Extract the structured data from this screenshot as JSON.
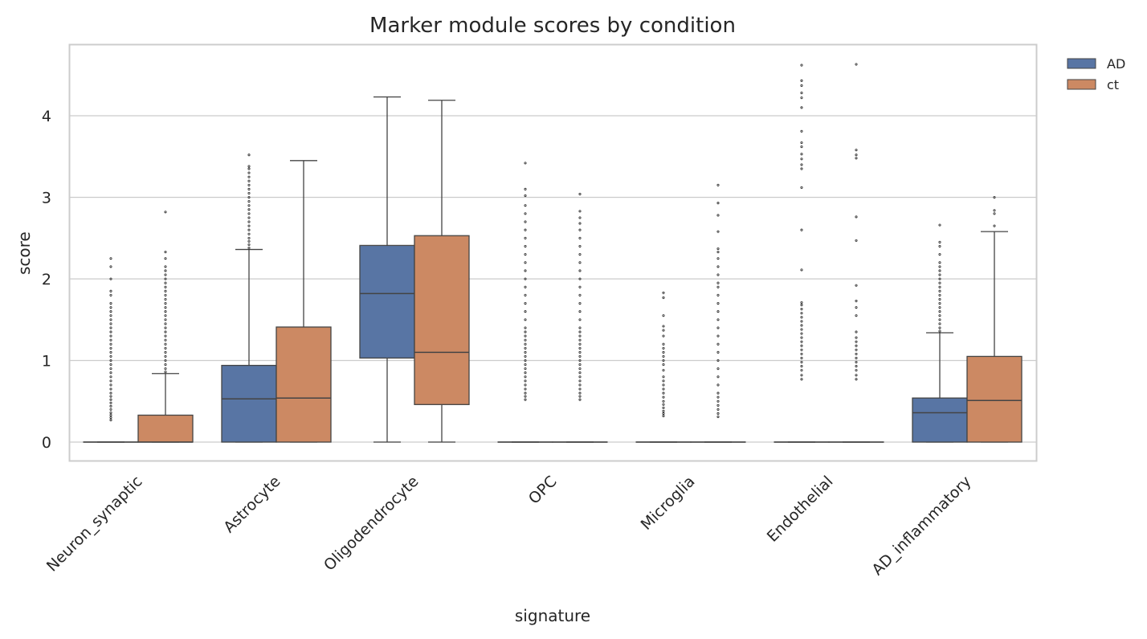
{
  "chart_data": {
    "type": "box",
    "title": "Marker module scores by condition",
    "xlabel": "signature",
    "ylabel": "score",
    "ylim": [
      -0.23,
      4.88
    ],
    "yticks": [
      0,
      1,
      2,
      3,
      4
    ],
    "grid": "y",
    "legend_position": "outside top-right",
    "categories": [
      "Neuron_synaptic",
      "Astrocyte",
      "Oligodendrocyte",
      "OPC",
      "Microglia",
      "Endothelial",
      "AD_inflammatory"
    ],
    "series": [
      {
        "name": "AD",
        "color": "#5875a4",
        "boxes": [
          {
            "q1": 0,
            "median": 0,
            "q3": 0,
            "whislo": 0,
            "whishi": 0,
            "fliers": [
              0.27,
              0.3,
              0.33,
              0.36,
              0.4,
              0.44,
              0.48,
              0.52,
              0.56,
              0.6,
              0.65,
              0.7,
              0.75,
              0.8,
              0.85,
              0.9,
              0.95,
              1.0,
              1.05,
              1.1,
              1.15,
              1.2,
              1.25,
              1.3,
              1.35,
              1.4,
              1.45,
              1.5,
              1.55,
              1.6,
              1.65,
              1.7,
              1.8,
              1.85,
              2.0,
              2.15,
              2.25
            ]
          },
          {
            "q1": 0,
            "median": 0.53,
            "q3": 0.94,
            "whislo": 0,
            "whishi": 2.36,
            "fliers": [
              2.38,
              2.42,
              2.46,
              2.5,
              2.55,
              2.6,
              2.65,
              2.7,
              2.75,
              2.8,
              2.85,
              2.9,
              2.95,
              3.0,
              3.05,
              3.1,
              3.15,
              3.2,
              3.25,
              3.3,
              3.35,
              3.38,
              3.52
            ]
          },
          {
            "q1": 1.03,
            "median": 1.82,
            "q3": 2.41,
            "whislo": 0,
            "whishi": 4.23,
            "fliers": []
          },
          {
            "q1": 0,
            "median": 0,
            "q3": 0,
            "whislo": 0,
            "whishi": 0,
            "fliers": [
              0.52,
              0.56,
              0.6,
              0.65,
              0.7,
              0.75,
              0.8,
              0.85,
              0.9,
              0.95,
              1.0,
              1.05,
              1.1,
              1.15,
              1.2,
              1.25,
              1.3,
              1.35,
              1.4,
              1.5,
              1.6,
              1.7,
              1.8,
              1.9,
              2.0,
              2.1,
              2.2,
              2.3,
              2.4,
              2.5,
              2.6,
              2.7,
              2.8,
              2.9,
              3.02,
              3.1,
              3.42
            ]
          },
          {
            "q1": 0,
            "median": 0,
            "q3": 0,
            "whislo": 0,
            "whishi": 0,
            "fliers": [
              0.32,
              0.35,
              0.38,
              0.42,
              0.46,
              0.5,
              0.55,
              0.6,
              0.65,
              0.7,
              0.75,
              0.8,
              0.88,
              0.95,
              1.0,
              1.05,
              1.1,
              1.15,
              1.2,
              1.3,
              1.37,
              1.42,
              1.55,
              1.77,
              1.83
            ]
          },
          {
            "q1": 0,
            "median": 0,
            "q3": 0,
            "whislo": 0,
            "whishi": 0,
            "fliers": [
              0.77,
              0.82,
              0.88,
              0.93,
              0.98,
              1.03,
              1.08,
              1.13,
              1.18,
              1.23,
              1.28,
              1.33,
              1.38,
              1.43,
              1.48,
              1.53,
              1.58,
              1.63,
              1.68,
              1.71,
              2.11,
              2.6,
              3.12,
              3.35,
              3.4,
              3.47,
              3.53,
              3.62,
              3.67,
              3.81,
              4.1,
              4.22,
              4.28,
              4.37,
              4.43,
              4.62
            ]
          },
          {
            "q1": 0,
            "median": 0.36,
            "q3": 0.54,
            "whislo": 0,
            "whishi": 1.34,
            "fliers": [
              1.36,
              1.4,
              1.45,
              1.5,
              1.55,
              1.6,
              1.65,
              1.7,
              1.75,
              1.8,
              1.85,
              1.9,
              1.95,
              2.0,
              2.05,
              2.1,
              2.15,
              2.2,
              2.3,
              2.4,
              2.45,
              2.66
            ]
          }
        ]
      },
      {
        "name": "ct",
        "color": "#cc8963",
        "boxes": [
          {
            "q1": 0,
            "median": 0,
            "q3": 0.33,
            "whislo": 0,
            "whishi": 0.84,
            "fliers": [
              0.86,
              0.9,
              0.95,
              1.0,
              1.05,
              1.1,
              1.15,
              1.2,
              1.25,
              1.3,
              1.35,
              1.4,
              1.45,
              1.5,
              1.55,
              1.6,
              1.65,
              1.7,
              1.75,
              1.8,
              1.85,
              1.9,
              1.95,
              2.0,
              2.05,
              2.1,
              2.15,
              2.25,
              2.33,
              2.82
            ]
          },
          {
            "q1": 0,
            "median": 0.54,
            "q3": 1.41,
            "whislo": 0,
            "whishi": 3.45,
            "fliers": []
          },
          {
            "q1": 0.46,
            "median": 1.1,
            "q3": 2.53,
            "whislo": 0,
            "whishi": 4.19,
            "fliers": []
          },
          {
            "q1": 0,
            "median": 0,
            "q3": 0,
            "whislo": 0,
            "whishi": 0,
            "fliers": [
              0.52,
              0.56,
              0.6,
              0.65,
              0.7,
              0.75,
              0.8,
              0.85,
              0.9,
              0.95,
              1.0,
              1.05,
              1.1,
              1.15,
              1.2,
              1.25,
              1.3,
              1.35,
              1.4,
              1.5,
              1.6,
              1.7,
              1.8,
              1.9,
              2.0,
              2.1,
              2.2,
              2.3,
              2.4,
              2.5,
              2.6,
              2.68,
              2.75,
              2.83,
              3.04
            ]
          },
          {
            "q1": 0,
            "median": 0,
            "q3": 0,
            "whislo": 0,
            "whishi": 0,
            "fliers": [
              0.31,
              0.35,
              0.4,
              0.45,
              0.5,
              0.55,
              0.6,
              0.7,
              0.8,
              0.9,
              1.0,
              1.1,
              1.2,
              1.3,
              1.4,
              1.5,
              1.6,
              1.7,
              1.8,
              1.9,
              1.95,
              2.05,
              2.15,
              2.25,
              2.33,
              2.37,
              2.58,
              2.78,
              2.93,
              3.15
            ]
          },
          {
            "q1": 0,
            "median": 0,
            "q3": 0,
            "whislo": 0,
            "whishi": 0,
            "fliers": [
              0.77,
              0.82,
              0.88,
              0.93,
              0.98,
              1.03,
              1.08,
              1.13,
              1.18,
              1.23,
              1.28,
              1.35,
              1.55,
              1.65,
              1.73,
              1.92,
              2.47,
              2.76,
              3.48,
              3.52,
              3.58,
              4.63
            ]
          },
          {
            "q1": 0,
            "median": 0.51,
            "q3": 1.05,
            "whislo": 0,
            "whishi": 2.58,
            "fliers": [
              2.65,
              2.8,
              2.84,
              3.0
            ]
          }
        ]
      }
    ]
  }
}
